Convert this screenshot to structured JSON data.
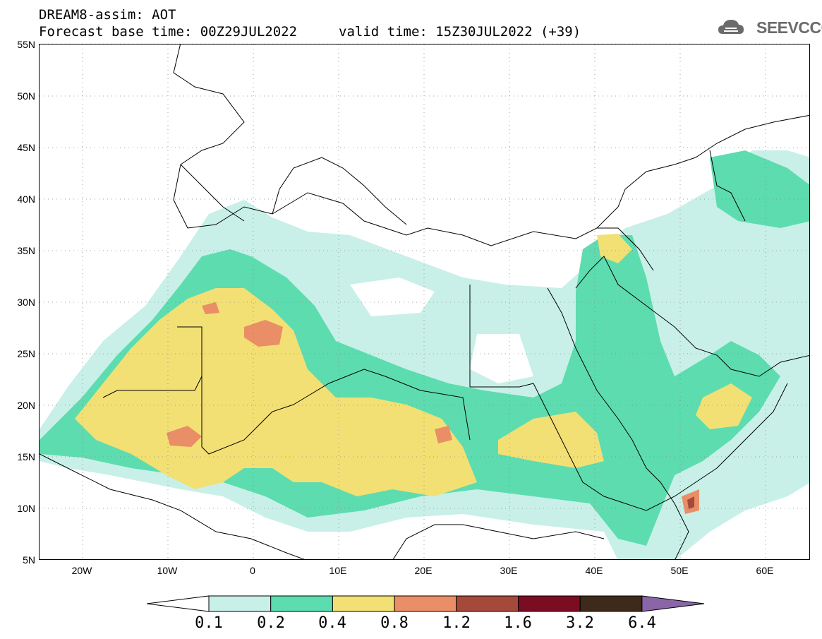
{
  "header": {
    "title": "DREAM8-assim: AOT",
    "forecast_base": "Forecast base time: 00Z29JUL2022",
    "valid_time": "valid time: 15Z30JUL2022 (+39)"
  },
  "logo": {
    "text": "SEEVCCC",
    "icon": "cloud-icon"
  },
  "map": {
    "lat_labels": [
      "55N",
      "50N",
      "45N",
      "40N",
      "35N",
      "30N",
      "25N",
      "20N",
      "15N",
      "10N",
      "5N"
    ],
    "lon_labels": [
      "20W",
      "10W",
      "0",
      "10E",
      "20E",
      "30E",
      "40E",
      "50E",
      "60E"
    ],
    "colors": {
      "c01_02": "#c8f0e8",
      "c02_04": "#5ddcb0",
      "c04_08": "#f2e074",
      "c08_12": "#e98e66",
      "c12_16": "#a5493a",
      "c16_32": "#7a0d22",
      "c32_64": "#3e2a1a",
      "c64p": "#8a66a8"
    }
  },
  "colorbar": {
    "labels": [
      "0.1",
      "0.2",
      "0.4",
      "0.8",
      "1.2",
      "1.6",
      "3.2",
      "6.4"
    ],
    "colors": [
      "#c8f0e8",
      "#5ddcb0",
      "#f2e074",
      "#e98e66",
      "#a5493a",
      "#7a0d22",
      "#3e2a1a"
    ],
    "low_color": "#ffffff",
    "high_color": "#8a66a8"
  }
}
